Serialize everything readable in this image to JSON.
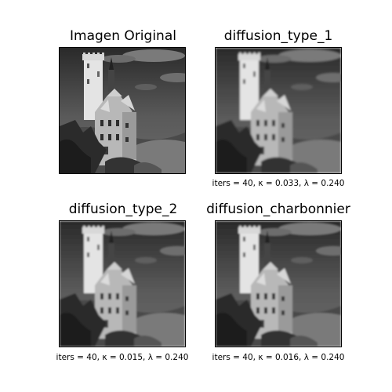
{
  "panels": [
    {
      "title": "Imagen Original",
      "caption": "",
      "blur": 0
    },
    {
      "title": "diffusion_type_1",
      "caption": "iters = 40, κ = 0.033, λ = 0.240",
      "blur": 1.2
    },
    {
      "title": "diffusion_type_2",
      "caption": "iters = 40, κ = 0.015, λ = 0.240",
      "blur": 1.0
    },
    {
      "title": "diffusion_charbonnier",
      "caption": "iters = 40, κ = 0.016, λ = 0.240",
      "blur": 1.0
    }
  ],
  "colors": {
    "background": "#ffffff",
    "frame": "#000000"
  }
}
